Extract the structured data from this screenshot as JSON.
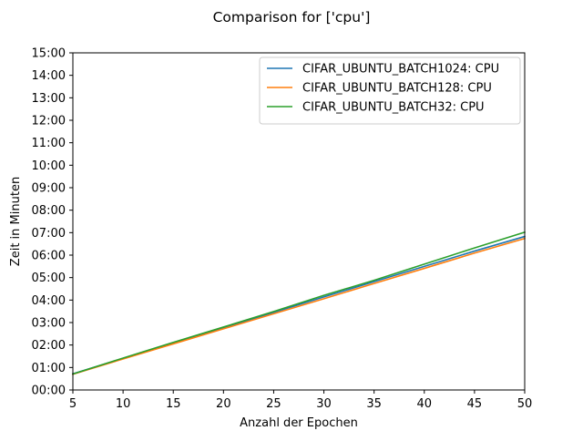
{
  "chart_data": {
    "type": "line",
    "title": "Comparison for ['cpu']",
    "xlabel": "Anzahl der Epochen",
    "ylabel": "Zeit in Minuten",
    "xlim": [
      5,
      50
    ],
    "ylim": [
      0,
      15
    ],
    "x_ticks": [
      5,
      10,
      15,
      20,
      25,
      30,
      35,
      40,
      45,
      50
    ],
    "x_tick_labels": [
      "5",
      "10",
      "15",
      "20",
      "25",
      "30",
      "35",
      "40",
      "45",
      "50"
    ],
    "y_ticks": [
      0,
      1,
      2,
      3,
      4,
      5,
      6,
      7,
      8,
      9,
      10,
      11,
      12,
      13,
      14,
      15
    ],
    "y_tick_labels": [
      "00:00",
      "01:00",
      "02:00",
      "03:00",
      "04:00",
      "05:00",
      "06:00",
      "07:00",
      "08:00",
      "09:00",
      "10:00",
      "11:00",
      "12:00",
      "13:00",
      "14:00",
      "15:00"
    ],
    "grid": false,
    "legend": "top-right",
    "x": [
      5,
      10,
      15,
      20,
      25,
      30,
      35,
      40,
      45,
      50
    ],
    "series": [
      {
        "name": "CIFAR_UBUNTU_BATCH1024: CPU",
        "color": "#1f77b4",
        "values": [
          0.72,
          1.41,
          2.09,
          2.77,
          3.45,
          4.14,
          4.82,
          5.5,
          6.18,
          6.83
        ]
      },
      {
        "name": "CIFAR_UBUNTU_BATCH128: CPU",
        "color": "#ff7f0e",
        "values": [
          0.7,
          1.38,
          2.05,
          2.72,
          3.39,
          4.06,
          4.74,
          5.41,
          6.09,
          6.74
        ]
      },
      {
        "name": "CIFAR_UBUNTU_BATCH32: CPU",
        "color": "#2ca02c",
        "values": [
          0.71,
          1.42,
          2.12,
          2.8,
          3.49,
          4.21,
          4.88,
          5.6,
          6.32,
          7.02
        ]
      }
    ]
  }
}
